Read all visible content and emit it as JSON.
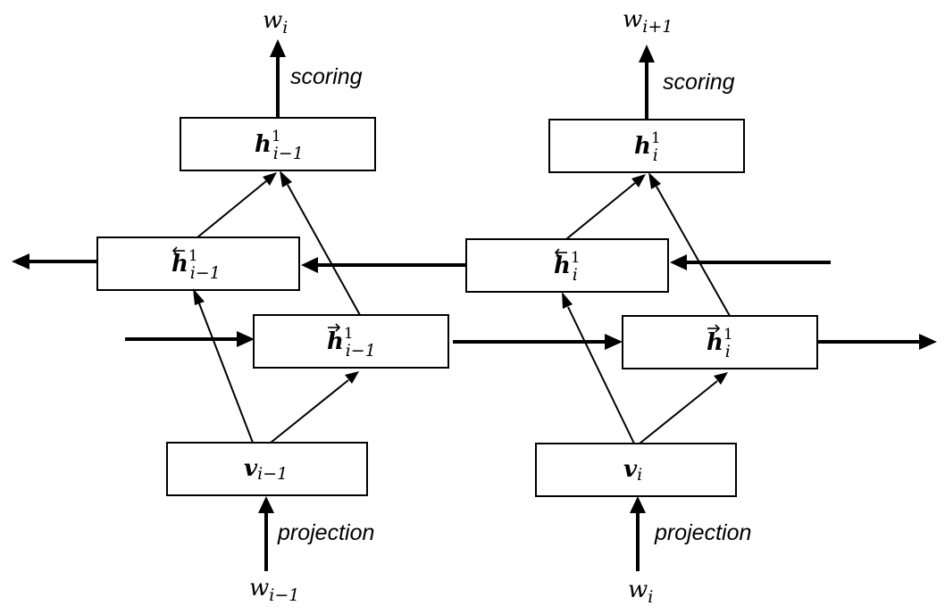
{
  "left_column": {
    "output_word": {
      "base": "w",
      "sub": "i"
    },
    "scoring_label": "scoring",
    "hidden_top": {
      "base": "h",
      "sup": "1",
      "sub": "i−1"
    },
    "hidden_backward": {
      "base": "h",
      "arrow": "←",
      "sup": "1",
      "sub": "i−1"
    },
    "hidden_forward": {
      "base": "h",
      "arrow": "→",
      "sup": "1",
      "sub": "i−1"
    },
    "embedding": {
      "base": "v",
      "sub": "i−1"
    },
    "projection_label": "projection",
    "input_word": {
      "base": "w",
      "sub": "i−1"
    }
  },
  "right_column": {
    "output_word": {
      "base": "w",
      "sub": "i+1"
    },
    "scoring_label": "scoring",
    "hidden_top": {
      "base": "h",
      "sup": "1",
      "sub": "i"
    },
    "hidden_backward": {
      "base": "h",
      "arrow": "←",
      "sup": "1",
      "sub": "i"
    },
    "hidden_forward": {
      "base": "h",
      "arrow": "→",
      "sup": "1",
      "sub": "i"
    },
    "embedding": {
      "base": "v",
      "sub": "i"
    },
    "projection_label": "projection",
    "input_word": {
      "base": "w",
      "sub": "i"
    }
  }
}
